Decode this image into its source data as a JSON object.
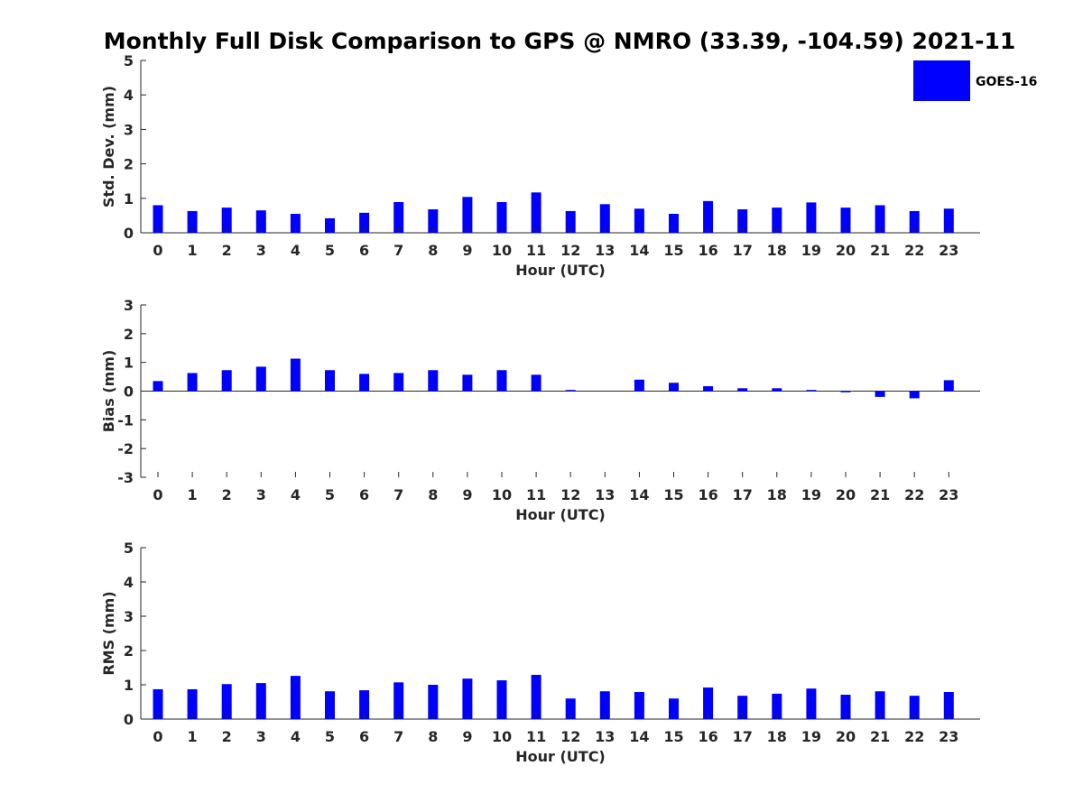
{
  "figure": {
    "title": "Monthly Full Disk Comparison to GPS @ NMRO (33.39, -104.59) 2021-11"
  },
  "legend": {
    "label": "GOES-16",
    "color": "#0000ff",
    "placement": "top-right"
  },
  "chart_data": [
    {
      "type": "bar",
      "xlabel": "Hour (UTC)",
      "ylabel": "Std. Dev. (mm)",
      "ylim": [
        0,
        5
      ],
      "yticks": [
        "0",
        "1",
        "2",
        "3",
        "4",
        "5"
      ],
      "categories": [
        "0",
        "1",
        "2",
        "3",
        "4",
        "5",
        "6",
        "7",
        "8",
        "9",
        "10",
        "11",
        "12",
        "13",
        "14",
        "15",
        "16",
        "17",
        "18",
        "19",
        "20",
        "21",
        "22",
        "23"
      ],
      "series": [
        {
          "name": "GOES-16",
          "color": "#0000ff",
          "values": [
            0.8,
            0.63,
            0.73,
            0.65,
            0.55,
            0.42,
            0.58,
            0.89,
            0.68,
            1.04,
            0.89,
            1.17,
            0.63,
            0.83,
            0.7,
            0.55,
            0.92,
            0.68,
            0.73,
            0.88,
            0.73,
            0.8,
            0.63,
            0.7
          ]
        }
      ]
    },
    {
      "type": "bar",
      "xlabel": "Hour (UTC)",
      "ylabel": "Bias (mm)",
      "ylim": [
        -3,
        3
      ],
      "yticks": [
        "-3",
        "-2",
        "-1",
        "0",
        "1",
        "2",
        "3"
      ],
      "categories": [
        "0",
        "1",
        "2",
        "3",
        "4",
        "5",
        "6",
        "7",
        "8",
        "9",
        "10",
        "11",
        "12",
        "13",
        "14",
        "15",
        "16",
        "17",
        "18",
        "19",
        "20",
        "21",
        "22",
        "23"
      ],
      "series": [
        {
          "name": "GOES-16",
          "color": "#0000ff",
          "values": [
            0.35,
            0.63,
            0.73,
            0.85,
            1.13,
            0.73,
            0.6,
            0.63,
            0.73,
            0.57,
            0.73,
            0.57,
            0.04,
            0.0,
            0.4,
            0.29,
            0.17,
            0.1,
            0.1,
            0.04,
            -0.04,
            -0.2,
            -0.25,
            0.38
          ]
        }
      ]
    },
    {
      "type": "bar",
      "xlabel": "Hour (UTC)",
      "ylabel": "RMS (mm)",
      "ylim": [
        0,
        5
      ],
      "yticks": [
        "0",
        "1",
        "2",
        "3",
        "4",
        "5"
      ],
      "categories": [
        "0",
        "1",
        "2",
        "3",
        "4",
        "5",
        "6",
        "7",
        "8",
        "9",
        "10",
        "11",
        "12",
        "13",
        "14",
        "15",
        "16",
        "17",
        "18",
        "19",
        "20",
        "21",
        "22",
        "23"
      ],
      "series": [
        {
          "name": "GOES-16",
          "color": "#0000ff",
          "values": [
            0.87,
            0.87,
            1.02,
            1.05,
            1.26,
            0.81,
            0.84,
            1.07,
            1.0,
            1.18,
            1.13,
            1.29,
            0.6,
            0.81,
            0.79,
            0.6,
            0.92,
            0.68,
            0.74,
            0.89,
            0.71,
            0.81,
            0.68,
            0.79
          ]
        }
      ]
    }
  ]
}
